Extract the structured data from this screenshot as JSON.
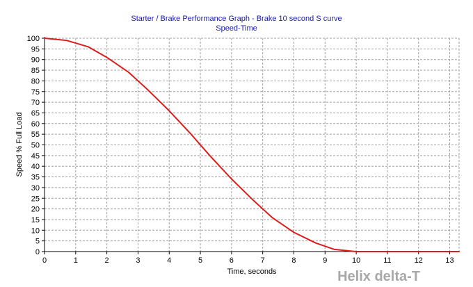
{
  "chart_data": {
    "type": "line",
    "title": "Starter / Brake Performance Graph - Brake 10 second S curve",
    "subtitle": "Speed-Time",
    "xlabel": "Time, seconds",
    "ylabel": "Speed % Full Load",
    "xlim": [
      0,
      13.3
    ],
    "ylim": [
      0,
      100
    ],
    "x_ticks": [
      0,
      1,
      2,
      3,
      4,
      5,
      6,
      7,
      8,
      9,
      10,
      11,
      12,
      13
    ],
    "y_ticks": [
      0,
      5,
      10,
      15,
      20,
      25,
      30,
      35,
      40,
      45,
      50,
      55,
      60,
      65,
      70,
      75,
      80,
      85,
      90,
      95,
      100
    ],
    "grid": true,
    "series": [
      {
        "color": "#dd1c1c",
        "x": [
          0,
          0.7,
          1.4,
          2.0,
          2.7,
          3.3,
          4.0,
          4.7,
          5.3,
          6.0,
          6.7,
          7.3,
          8.0,
          8.7,
          9.3,
          10.0,
          10.5,
          11.0,
          12.0,
          13.3
        ],
        "values": [
          100,
          99,
          96,
          91,
          84,
          76,
          66,
          55,
          45,
          34,
          24,
          16,
          9,
          4,
          1,
          0,
          0,
          0,
          0,
          0
        ]
      }
    ]
  },
  "watermark": "Helix delta-T",
  "colors": {
    "title": "#1a1aa0",
    "grid": "#a0a0a0",
    "line": "#dd1c1c",
    "watermark": "#a8a8a8"
  }
}
